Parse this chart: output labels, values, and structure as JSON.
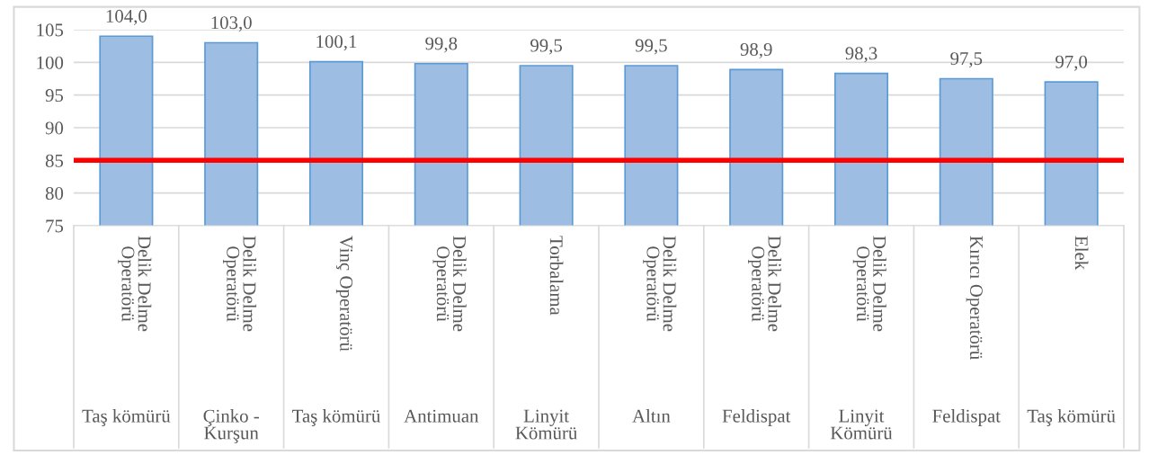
{
  "chart_data": {
    "type": "bar",
    "categories": [
      "Delik Delme Operatörü\nTaş kömürü",
      "Delik Delme Operatörü\nÇinko - Kurşun",
      "Vinç Operatörü\nTaş kömürü",
      "Delik Delme Operatörü\nAntimuan",
      "Torbalama\nLinyit Kömürü",
      "Delik Delme Operatörü\nAltın",
      "Delik Delme Operatörü\nFeldispat",
      "Delik Delme Operatörü\nLinyit Kömürü",
      "Kırıcı Operatörü\nFeldispat",
      "Elek\nTaş kömürü"
    ],
    "values": [
      104.0,
      103.0,
      100.1,
      99.8,
      99.5,
      99.5,
      98.9,
      98.3,
      97.5,
      97.0
    ],
    "value_labels": [
      "104,0",
      "103,0",
      "100,1",
      "99,8",
      "99,5",
      "99,5",
      "98,9",
      "98,3",
      "97,5",
      "97,0"
    ],
    "color": "#9dbde3",
    "ylim": [
      75,
      105
    ],
    "yticks": [
      75,
      80,
      85,
      90,
      95,
      100,
      105
    ],
    "grid": "y",
    "ref_lines": [
      {
        "axis": "y",
        "value": 85,
        "color": "#ff0000"
      }
    ]
  }
}
